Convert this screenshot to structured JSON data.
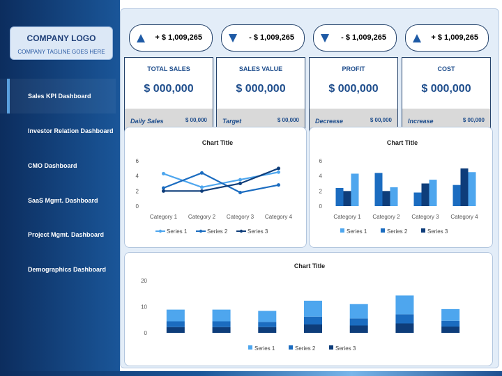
{
  "logo": {
    "title": "COMPANY LOGO",
    "tagline": "COMPANY TAGLINE GOES HERE"
  },
  "nav": [
    {
      "label": "Sales KPI Dashboard",
      "active": true
    },
    {
      "label": "Investor Relation Dashboard",
      "active": false
    },
    {
      "label": "CMO Dashboard",
      "active": false
    },
    {
      "label": "SaaS Mgmt. Dashboard",
      "active": false
    },
    {
      "label": "Project Mgmt. Dashboard",
      "active": false
    },
    {
      "label": "Demographics Dashboard",
      "active": false
    }
  ],
  "kpi_pills": [
    {
      "direction": "up",
      "icon": "up-triangle-icon",
      "value": "+ $ 1,009,265"
    },
    {
      "direction": "down",
      "icon": "down-triangle-icon",
      "value": "- $ 1,009,265"
    },
    {
      "direction": "down",
      "icon": "down-triangle-icon",
      "value": "- $ 1,009,265"
    },
    {
      "direction": "up",
      "icon": "up-triangle-icon",
      "value": "+ $ 1,009,265"
    }
  ],
  "cards": [
    {
      "title": "TOTAL SALES",
      "value": "$ 000,000",
      "foot_label": "Daily Sales",
      "foot_value": "$ 00,000"
    },
    {
      "title": "SALES VALUE",
      "value": "$ 000,000",
      "foot_label": "Target",
      "foot_value": "$ 00,000"
    },
    {
      "title": "PROFIT",
      "value": "$ 000,000",
      "foot_label": "Decrease",
      "foot_value": "$ 00,000"
    },
    {
      "title": "COST",
      "value": "$ 000,000",
      "foot_label": "Increase",
      "foot_value": "$ 00,000"
    }
  ],
  "colors": {
    "series1": "#4ea6ee",
    "series2": "#1b6cc0",
    "series3": "#0e3d7a",
    "sidebar": "#0c2d5e",
    "accent": "#1e4d8c"
  },
  "chart_data": [
    {
      "type": "line",
      "title": "Chart Title",
      "categories": [
        "Category 1",
        "Category 2",
        "Category 3",
        "Category 4"
      ],
      "ylim": [
        0,
        6
      ],
      "yticks": [
        0,
        2,
        4,
        6
      ],
      "series": [
        {
          "name": "Series 1",
          "values": [
            4.3,
            2.5,
            3.5,
            4.5
          ]
        },
        {
          "name": "Series 2",
          "values": [
            2.4,
            4.4,
            1.8,
            2.8
          ]
        },
        {
          "name": "Series 3",
          "values": [
            2,
            2,
            3,
            5
          ]
        }
      ],
      "legend": "bottom"
    },
    {
      "type": "bar",
      "title": "Chart Title",
      "categories": [
        "Category 1",
        "Category 2",
        "Category 3",
        "Category 4"
      ],
      "ylim": [
        0,
        6
      ],
      "yticks": [
        0,
        2,
        4,
        6
      ],
      "series": [
        {
          "name": "Series 1",
          "values": [
            4.3,
            2.5,
            3.5,
            4.5
          ]
        },
        {
          "name": "Series 2",
          "values": [
            2.4,
            4.4,
            1.8,
            2.8
          ]
        },
        {
          "name": "Series 3",
          "values": [
            2,
            2,
            3,
            5
          ]
        }
      ],
      "legend": "bottom"
    },
    {
      "type": "bar",
      "stacked": true,
      "title": "Chart Title",
      "categories": [
        "",
        "",
        "",
        "",
        "",
        "",
        ""
      ],
      "ylim": [
        0,
        20
      ],
      "yticks": [
        0,
        10,
        20
      ],
      "series": [
        {
          "name": "Series 1",
          "values": [
            4.5,
            4.5,
            4.2,
            6.1,
            5.5,
            7.2,
            4.5
          ]
        },
        {
          "name": "Series 2",
          "values": [
            2.2,
            2.2,
            2.0,
            3.0,
            2.7,
            3.5,
            2.2
          ]
        },
        {
          "name": "Series 3",
          "values": [
            2.2,
            2.2,
            2.2,
            3.2,
            2.8,
            3.6,
            2.4
          ]
        }
      ],
      "legend": "bottom"
    }
  ]
}
